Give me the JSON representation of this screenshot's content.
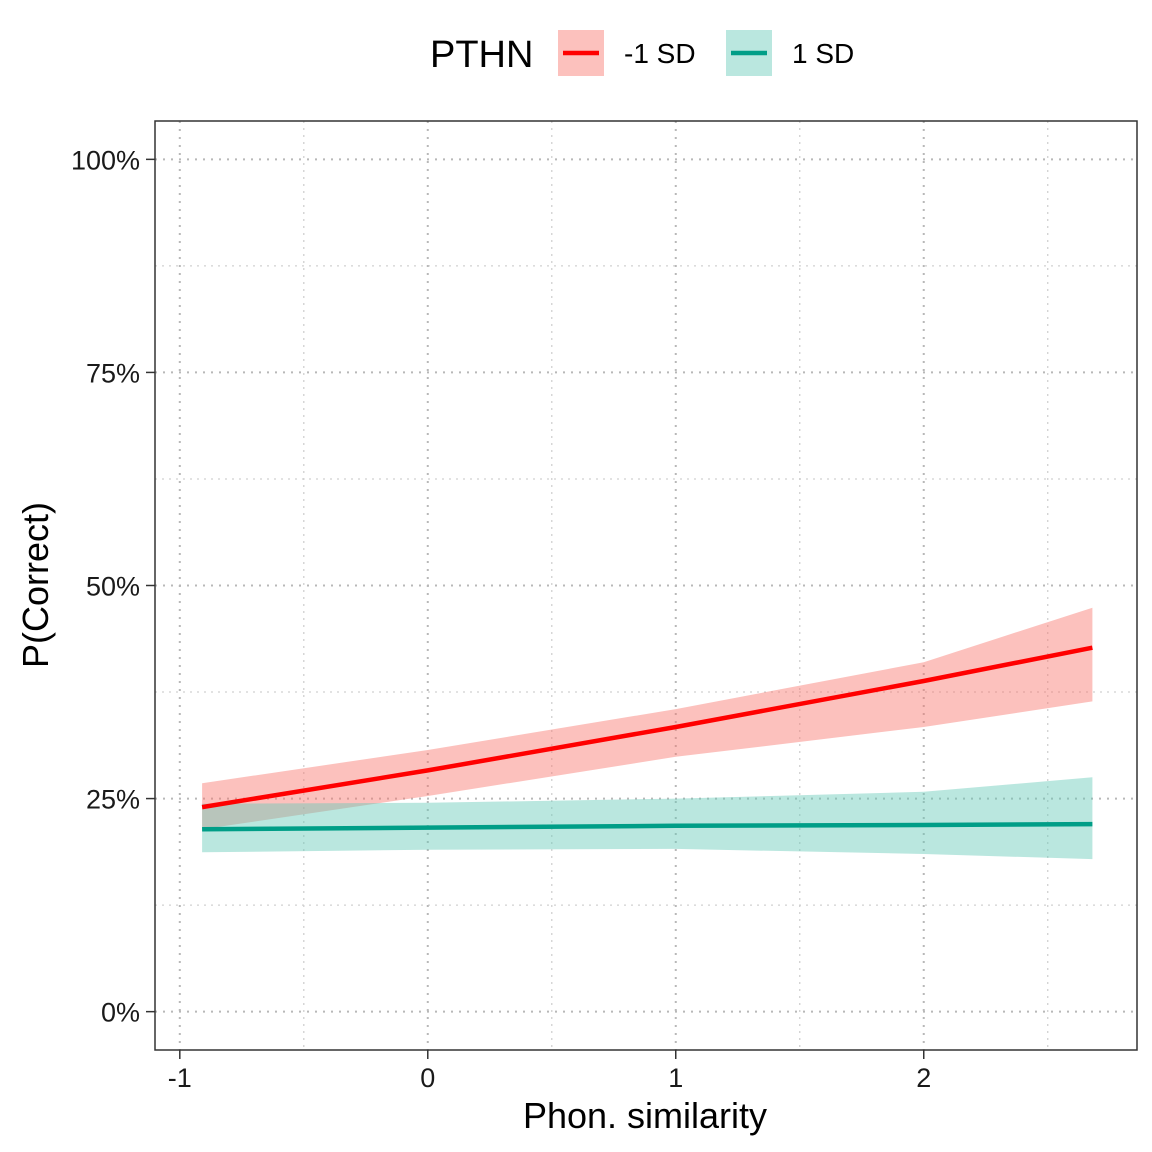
{
  "chart_data": {
    "type": "line",
    "xlabel": "Phon. similarity",
    "ylabel": "P(Correct)",
    "legend": {
      "title": "PTHN",
      "position": "top"
    },
    "xlim": [
      -1.1,
      2.86
    ],
    "ylim": [
      -0.045,
      1.045
    ],
    "x_ticks": [
      -1,
      0,
      1,
      2
    ],
    "x_tick_labels": [
      "-1",
      "0",
      "1",
      "2"
    ],
    "y_ticks": [
      0,
      0.25,
      0.5,
      0.75,
      1.0
    ],
    "y_tick_labels": [
      "0%",
      "25%",
      "50%",
      "75%",
      "100%"
    ],
    "grid": "dotted major and minor",
    "series": [
      {
        "name": "-1 SD",
        "line_color": "#ff0000",
        "band_color": "#f8766d",
        "x": [
          -0.91,
          0,
          1,
          2,
          2.68
        ],
        "y": [
          0.24,
          0.283,
          0.334,
          0.388,
          0.427
        ],
        "ci_low": [
          0.214,
          0.253,
          0.299,
          0.334,
          0.364
        ],
        "ci_high": [
          0.268,
          0.307,
          0.355,
          0.41,
          0.474
        ]
      },
      {
        "name": "1 SD",
        "line_color": "#009e87",
        "band_color": "#66c9b9",
        "x": [
          -0.91,
          0,
          1,
          2,
          2.68
        ],
        "y": [
          0.214,
          0.216,
          0.218,
          0.219,
          0.22
        ],
        "ci_low": [
          0.187,
          0.19,
          0.191,
          0.185,
          0.179
        ],
        "ci_high": [
          0.244,
          0.245,
          0.25,
          0.258,
          0.275
        ]
      }
    ]
  }
}
